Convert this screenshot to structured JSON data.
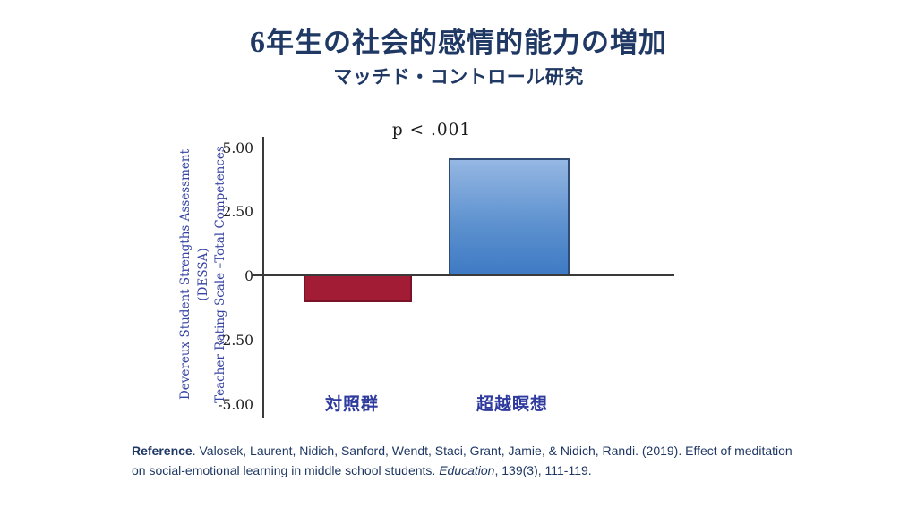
{
  "slide": {
    "title_prefix": "6",
    "title_main": "年生の社会的感情的能力の増加",
    "subtitle": "マッチド・コントロール研究"
  },
  "chart_data": {
    "type": "bar",
    "title": "6年生の社会的感情的能力の増加 マッチド・コントロール研究",
    "categories": [
      "対照群",
      "超越瞑想"
    ],
    "values": [
      -1.0,
      4.6
    ],
    "annotation": "p < .001",
    "ylabel_line1": "Devereux Student Strengths Assessment (DESSA)",
    "ylabel_line2": "Teacher Rating  Scale –Total Competences",
    "yticks": [
      "5.00",
      "2.50",
      "0",
      "-2.50",
      "-5.00"
    ],
    "ytick_values": [
      5.0,
      2.5,
      0,
      -2.5,
      -5.0
    ],
    "ylim": [
      -5.0,
      5.0
    ],
    "grid": "off",
    "legend": "none",
    "bar_colors": {
      "control_fill": "#A21C35",
      "control_border": "#7A1228",
      "tm_gradient_top": "#95B7E3",
      "tm_gradient_bottom": "#3E7AC4",
      "tm_border": "#2F4A73"
    }
  },
  "reference": {
    "label_bold": "Reference",
    "text1": ". Valosek, Laurent, Nidich, Sanford, Wendt, Staci, Grant, Jamie, & Nidich, Randi. (2019). Effect of meditation on social-emotional learning in middle school students. ",
    "journal_italic": "Education",
    "text2": ", 139(3), 111-119."
  },
  "colors": {
    "title_navy": "#1F3864",
    "axis_line": "#3a3a3a",
    "category_blue": "#2E3A9E",
    "ylabel_blue": "#3643A2"
  }
}
